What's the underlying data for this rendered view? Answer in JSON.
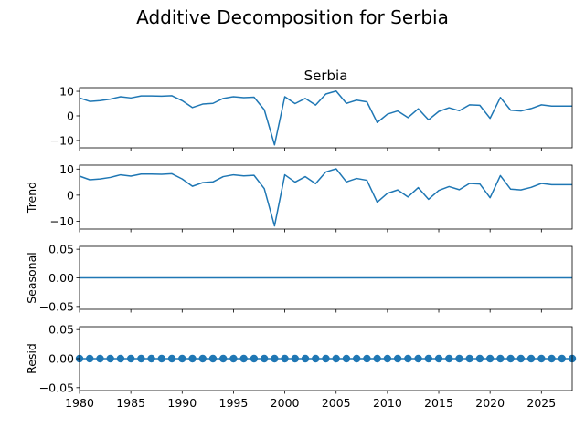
{
  "chart_data": {
    "type": "line",
    "suptitle": "Additive Decomposition for Serbia",
    "x": [
      1980,
      1981,
      1982,
      1983,
      1984,
      1985,
      1986,
      1987,
      1988,
      1989,
      1990,
      1991,
      1992,
      1993,
      1994,
      1995,
      1996,
      1997,
      1998,
      1999,
      2000,
      2001,
      2002,
      2003,
      2004,
      2005,
      2006,
      2007,
      2008,
      2009,
      2010,
      2011,
      2012,
      2013,
      2014,
      2015,
      2016,
      2017,
      2018,
      2019,
      2020,
      2021,
      2022,
      2023,
      2024,
      2025,
      2026,
      2027,
      2028
    ],
    "xlim": [
      1980,
      2028
    ],
    "xticks": [
      "1980",
      "1985",
      "1990",
      "1995",
      "2000",
      "2005",
      "2010",
      "2015",
      "2020",
      "2025"
    ],
    "series_color": "#1f77b4",
    "panels": [
      {
        "title": "Serbia",
        "ylabel": "",
        "ylim": [
          -13,
          11.5
        ],
        "yticks": [
          "10",
          "0",
          "−10"
        ],
        "ytick_values": [
          10,
          0,
          -10
        ],
        "style": "line",
        "values": [
          7.3,
          5.9,
          6.2,
          6.8,
          7.8,
          7.3,
          8.1,
          8.1,
          8.0,
          8.2,
          6.2,
          3.4,
          4.8,
          5.1,
          7.1,
          7.8,
          7.4,
          7.6,
          2.5,
          -11.8,
          7.8,
          5.0,
          7.1,
          4.4,
          8.9,
          10.1,
          5.1,
          6.4,
          5.7,
          -2.7,
          0.7,
          2.0,
          -0.7,
          2.9,
          -1.6,
          1.8,
          3.3,
          2.1,
          4.5,
          4.3,
          -1.0,
          7.5,
          2.3,
          2.0,
          3.0,
          4.5,
          4.0,
          4.0,
          4.0
        ]
      },
      {
        "title": "",
        "ylabel": "Trend",
        "ylim": [
          -13,
          11.5
        ],
        "yticks": [
          "10",
          "0",
          "−10"
        ],
        "ytick_values": [
          10,
          0,
          -10
        ],
        "style": "line",
        "values": [
          7.3,
          5.9,
          6.2,
          6.8,
          7.8,
          7.3,
          8.1,
          8.1,
          8.0,
          8.2,
          6.2,
          3.4,
          4.8,
          5.1,
          7.1,
          7.8,
          7.4,
          7.6,
          2.5,
          -11.8,
          7.8,
          5.0,
          7.1,
          4.4,
          8.9,
          10.1,
          5.1,
          6.4,
          5.7,
          -2.7,
          0.7,
          2.0,
          -0.7,
          2.9,
          -1.6,
          1.8,
          3.3,
          2.1,
          4.5,
          4.3,
          -1.0,
          7.5,
          2.3,
          2.0,
          3.0,
          4.5,
          4.0,
          4.0,
          4.0
        ]
      },
      {
        "title": "",
        "ylabel": "Seasonal",
        "ylim": [
          -0.055,
          0.055
        ],
        "yticks": [
          "0.05",
          "0.00",
          "−0.05"
        ],
        "ytick_values": [
          0.05,
          0,
          -0.05
        ],
        "style": "line",
        "values": [
          0,
          0,
          0,
          0,
          0,
          0,
          0,
          0,
          0,
          0,
          0,
          0,
          0,
          0,
          0,
          0,
          0,
          0,
          0,
          0,
          0,
          0,
          0,
          0,
          0,
          0,
          0,
          0,
          0,
          0,
          0,
          0,
          0,
          0,
          0,
          0,
          0,
          0,
          0,
          0,
          0,
          0,
          0,
          0,
          0,
          0,
          0,
          0,
          0
        ]
      },
      {
        "title": "",
        "ylabel": "Resid",
        "ylim": [
          -0.055,
          0.055
        ],
        "yticks": [
          "0.05",
          "0.00",
          "−0.05"
        ],
        "ytick_values": [
          0.05,
          0,
          -0.05
        ],
        "style": "markers",
        "values": [
          0,
          0,
          0,
          0,
          0,
          0,
          0,
          0,
          0,
          0,
          0,
          0,
          0,
          0,
          0,
          0,
          0,
          0,
          0,
          0,
          0,
          0,
          0,
          0,
          0,
          0,
          0,
          0,
          0,
          0,
          0,
          0,
          0,
          0,
          0,
          0,
          0,
          0,
          0,
          0,
          0,
          0,
          0,
          0,
          0,
          0,
          0,
          0,
          0
        ]
      }
    ]
  }
}
